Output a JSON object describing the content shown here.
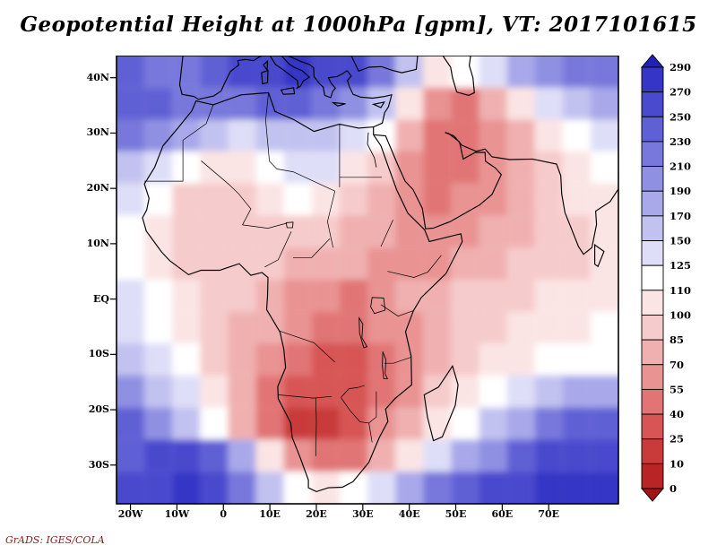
{
  "title": "Geopotential Height at 1000hPa [gpm], VT: 2017101615",
  "credit": "GrADS: IGES/COLA",
  "chart_data": {
    "type": "heatmap",
    "title": "Geopotential Height at 1000hPa [gpm], VT: 2017101615",
    "variable": "Geopotential Height",
    "level": "1000hPa",
    "units": "gpm",
    "valid_time": "2017101615",
    "lon_range": [
      -23,
      85
    ],
    "lat_range": [
      -37,
      44
    ],
    "x_axis": {
      "ticks": [
        {
          "label": "20W",
          "deg": -20
        },
        {
          "label": "10W",
          "deg": -10
        },
        {
          "label": "0",
          "deg": 0
        },
        {
          "label": "10E",
          "deg": 10
        },
        {
          "label": "20E",
          "deg": 20
        },
        {
          "label": "30E",
          "deg": 30
        },
        {
          "label": "40E",
          "deg": 40
        },
        {
          "label": "50E",
          "deg": 50
        },
        {
          "label": "60E",
          "deg": 60
        },
        {
          "label": "70E",
          "deg": 70
        }
      ]
    },
    "y_axis": {
      "ticks": [
        {
          "label": "40N",
          "deg": 40
        },
        {
          "label": "30N",
          "deg": 30
        },
        {
          "label": "20N",
          "deg": 20
        },
        {
          "label": "10N",
          "deg": 10
        },
        {
          "label": "EQ",
          "deg": 0
        },
        {
          "label": "10S",
          "deg": -10
        },
        {
          "label": "20S",
          "deg": -20
        },
        {
          "label": "30S",
          "deg": -30
        }
      ]
    },
    "colorbar": {
      "position": "right",
      "boundary_labels": [
        "290",
        "270",
        "250",
        "230",
        "210",
        "190",
        "170",
        "150",
        "125",
        "110",
        "100",
        "85",
        "70",
        "55",
        "40",
        "25",
        "10",
        "0"
      ],
      "levels": [
        0,
        10,
        25,
        40,
        55,
        70,
        85,
        100,
        110,
        125,
        150,
        170,
        190,
        210,
        230,
        250,
        270,
        290
      ],
      "colors_low_to_high": [
        "#a01515",
        "#b92525",
        "#c93a3a",
        "#d75555",
        "#e17575",
        "#e99393",
        "#f0b0b0",
        "#f6cbcb",
        "#fbe4e4",
        "#ffffff",
        "#dedef8",
        "#c2c2f0",
        "#a8a8ea",
        "#9090e3",
        "#7878dc",
        "#6060d5",
        "#4a4ace",
        "#3636c6",
        "#2121b8"
      ]
    },
    "grid": {
      "lons": [
        -20,
        -14,
        -8,
        -2,
        4,
        10,
        16,
        22,
        28,
        34,
        40,
        46,
        52,
        58,
        64,
        70,
        76,
        82
      ],
      "lats": [
        41.1,
        35.3,
        29.5,
        23.8,
        18.0,
        12.2,
        6.4,
        0.6,
        -5.2,
        -10.9,
        -16.7,
        -22.5,
        -28.3,
        -34.1
      ],
      "values_north_to_south": [
        [
          235,
          225,
          218,
          240,
          258,
          268,
          272,
          268,
          252,
          215,
          150,
          105,
          118,
          145,
          170,
          195,
          210,
          215
        ],
        [
          242,
          235,
          225,
          215,
          222,
          235,
          240,
          228,
          205,
          160,
          105,
          58,
          50,
          72,
          105,
          135,
          160,
          170
        ],
        [
          215,
          200,
          175,
          152,
          148,
          158,
          168,
          158,
          140,
          115,
          82,
          52,
          46,
          60,
          82,
          105,
          122,
          130
        ],
        [
          165,
          148,
          122,
          108,
          104,
          116,
          132,
          126,
          108,
          88,
          66,
          50,
          46,
          56,
          74,
          92,
          104,
          110
        ],
        [
          138,
          118,
          98,
          92,
          96,
          106,
          116,
          108,
          96,
          80,
          64,
          54,
          56,
          66,
          80,
          92,
          102,
          106
        ],
        [
          122,
          102,
          90,
          86,
          88,
          93,
          96,
          91,
          83,
          72,
          61,
          57,
          62,
          72,
          83,
          91,
          97,
          101
        ],
        [
          116,
          106,
          98,
          92,
          88,
          85,
          82,
          77,
          70,
          64,
          61,
          64,
          72,
          81,
          89,
          95,
          99,
          103
        ],
        [
          126,
          113,
          101,
          93,
          86,
          79,
          69,
          58,
          52,
          61,
          70,
          78,
          86,
          93,
          97,
          101,
          105,
          107
        ],
        [
          136,
          121,
          106,
          96,
          83,
          71,
          60,
          49,
          45,
          56,
          69,
          81,
          91,
          97,
          101,
          105,
          109,
          111
        ],
        [
          166,
          141,
          116,
          96,
          80,
          62,
          47,
          38,
          37,
          50,
          66,
          81,
          93,
          101,
          109,
          115,
          119,
          121
        ],
        [
          196,
          166,
          136,
          106,
          80,
          54,
          36,
          27,
          34,
          50,
          68,
          86,
          101,
          116,
          136,
          156,
          171,
          179
        ],
        [
          232,
          202,
          164,
          118,
          76,
          44,
          24,
          19,
          34,
          55,
          80,
          101,
          121,
          151,
          186,
          216,
          236,
          241
        ],
        [
          248,
          262,
          268,
          242,
          172,
          100,
          58,
          44,
          54,
          79,
          109,
          144,
          179,
          209,
          234,
          251,
          261,
          264
        ],
        [
          252,
          266,
          278,
          262,
          218,
          158,
          118,
          108,
          118,
          148,
          183,
          213,
          239,
          257,
          267,
          272,
          275,
          275
        ]
      ]
    }
  }
}
